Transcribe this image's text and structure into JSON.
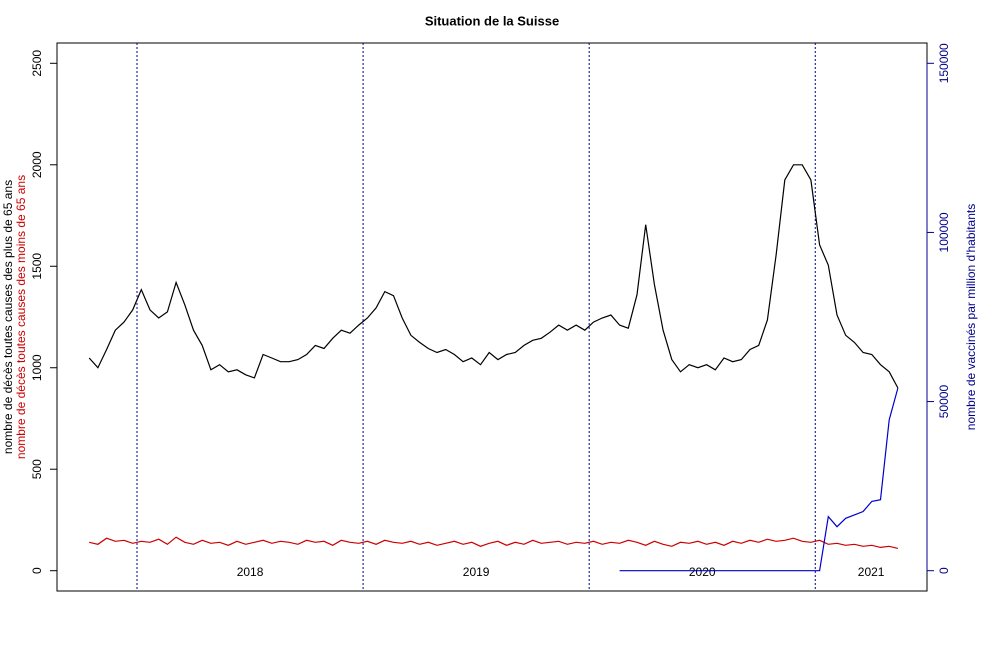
{
  "chart_data": {
    "type": "line",
    "title": "Situation de la Suisse",
    "ylabel": [
      "nombre de décès toutes causes des plus de 65 ans",
      "nombre de décès toutes causes des moins de 65 ans"
    ],
    "ylabel_colors": [
      "#000000",
      "#cc0000"
    ],
    "y2label": "nombre de vaccinés par million d'habitants",
    "y2color": "#00008b",
    "xlim": [
      -18.4,
      181.7
    ],
    "ylim": [
      -100,
      2600
    ],
    "yticks": [
      0,
      500,
      1000,
      1500,
      2000,
      2500
    ],
    "y2lim": [
      -6000,
      156000
    ],
    "y2ticks": [
      0,
      50000,
      100000,
      150000
    ],
    "vlines": [
      0,
      52,
      104,
      156
    ],
    "year_labels": [
      "2018",
      "2019",
      "2020",
      "2021"
    ],
    "x": [
      -11,
      -9,
      -7,
      -5,
      -3,
      -1,
      1,
      3,
      5,
      7,
      9,
      11,
      13,
      15,
      17,
      19,
      21,
      23,
      25,
      27,
      29,
      31,
      33,
      35,
      37,
      39,
      41,
      43,
      45,
      47,
      49,
      51,
      53,
      55,
      57,
      59,
      61,
      63,
      65,
      67,
      69,
      71,
      73,
      75,
      77,
      79,
      81,
      83,
      85,
      87,
      89,
      91,
      93,
      95,
      97,
      99,
      101,
      103,
      105,
      107,
      109,
      111,
      113,
      115,
      117,
      119,
      121,
      123,
      125,
      127,
      129,
      131,
      133,
      135,
      137,
      139,
      141,
      143,
      145,
      147,
      149,
      151,
      153,
      155,
      157,
      159,
      161,
      163,
      165,
      167,
      169,
      171,
      173,
      175
    ],
    "series": [
      {
        "color": "#000000",
        "values": [
          1048,
          1000,
          1090,
          1185,
          1225,
          1285,
          1385,
          1285,
          1245,
          1275,
          1420,
          1310,
          1185,
          1110,
          990,
          1015,
          980,
          990,
          965,
          950,
          1065,
          1048,
          1030,
          1030,
          1040,
          1065,
          1110,
          1095,
          1145,
          1185,
          1170,
          1210,
          1245,
          1295,
          1375,
          1355,
          1245,
          1160,
          1125,
          1095,
          1075,
          1090,
          1065,
          1030,
          1048,
          1015,
          1075,
          1040,
          1065,
          1075,
          1110,
          1135,
          1145,
          1175,
          1210,
          1185,
          1210,
          1185,
          1225,
          1245,
          1260,
          1210,
          1195,
          1360,
          1705,
          1410,
          1185,
          1040,
          980,
          1015,
          1000,
          1015,
          990,
          1048,
          1030,
          1040,
          1090,
          1110,
          1235,
          1555,
          1925,
          2000,
          2000,
          1925,
          1605,
          1505,
          1260,
          1160,
          1125,
          1075,
          1065,
          1015,
          980,
          900
        ]
      },
      {
        "color": "#cc0000",
        "values": [
          140,
          130,
          160,
          145,
          150,
          135,
          145,
          140,
          155,
          130,
          165,
          140,
          130,
          150,
          135,
          140,
          125,
          145,
          130,
          140,
          150,
          135,
          145,
          140,
          130,
          150,
          140,
          145,
          125,
          150,
          140,
          135,
          145,
          130,
          150,
          140,
          135,
          145,
          130,
          140,
          125,
          135,
          145,
          130,
          140,
          120,
          135,
          145,
          125,
          140,
          130,
          150,
          135,
          140,
          145,
          130,
          140,
          135,
          145,
          130,
          140,
          135,
          150,
          140,
          125,
          145,
          130,
          120,
          140,
          135,
          145,
          130,
          140,
          125,
          145,
          135,
          150,
          140,
          155,
          145,
          150,
          160,
          145,
          140,
          150,
          130,
          135,
          125,
          130,
          120,
          125,
          115,
          120,
          110
        ]
      },
      {
        "color": "#0000cc",
        "axis": "y2",
        "values": [
          null,
          null,
          null,
          null,
          null,
          null,
          null,
          null,
          null,
          null,
          null,
          null,
          null,
          null,
          null,
          null,
          null,
          null,
          null,
          null,
          null,
          null,
          null,
          null,
          null,
          null,
          null,
          null,
          null,
          null,
          null,
          null,
          null,
          null,
          null,
          null,
          null,
          null,
          null,
          null,
          null,
          null,
          null,
          null,
          null,
          null,
          null,
          null,
          null,
          null,
          null,
          null,
          null,
          null,
          null,
          null,
          null,
          null,
          null,
          null,
          null,
          0,
          0,
          0,
          0,
          0,
          0,
          0,
          0,
          0,
          0,
          0,
          0,
          0,
          0,
          0,
          0,
          0,
          0,
          0,
          0,
          0,
          0,
          0,
          0,
          16000,
          13000,
          15500,
          16500,
          17500,
          20500,
          21000,
          44600,
          54000
        ]
      }
    ]
  }
}
